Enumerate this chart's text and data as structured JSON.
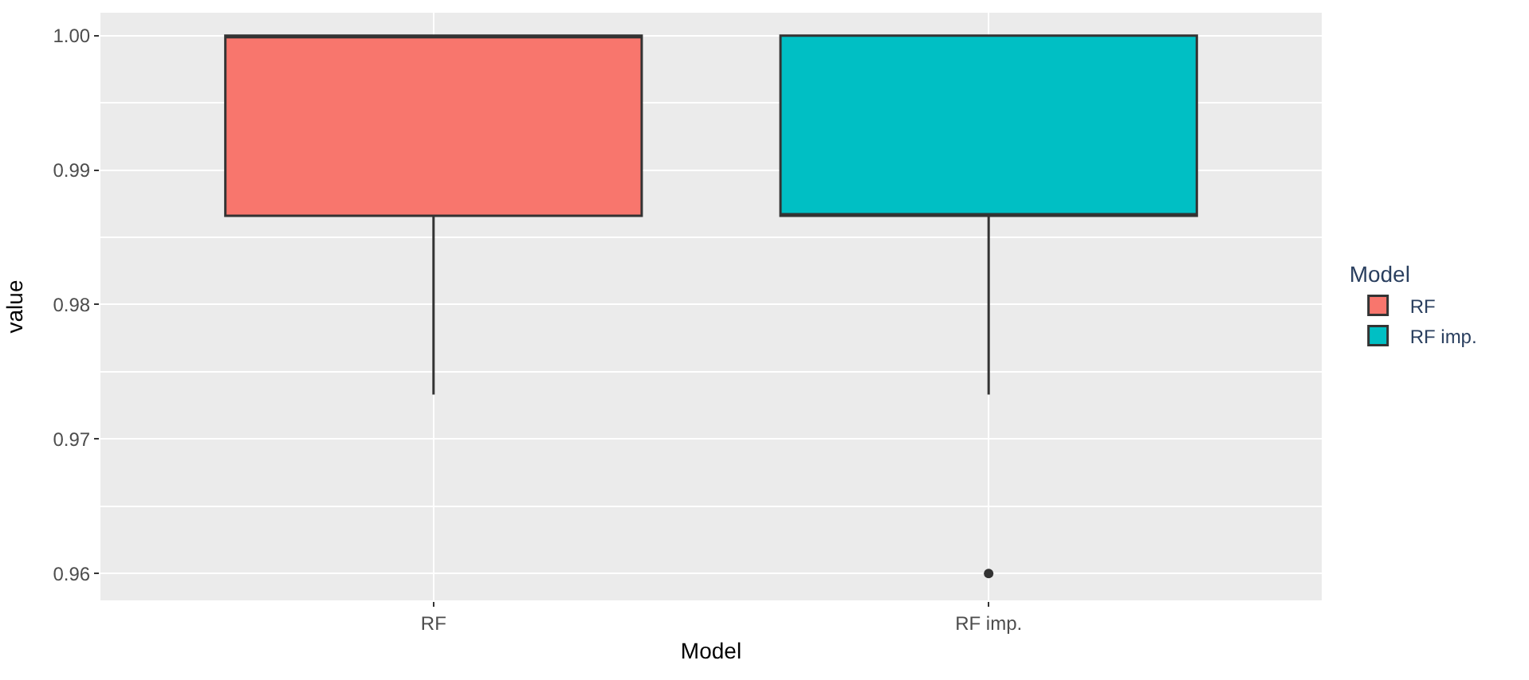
{
  "chart_data": {
    "type": "box",
    "xlabel": "Model",
    "ylabel": "value",
    "legend_title": "Model",
    "categories": [
      "RF",
      "RF imp."
    ],
    "series": [
      {
        "name": "RF",
        "color": "#f8766d",
        "boxes": [
          {
            "low": 0.9733,
            "q1": 0.9866,
            "median": 1.0,
            "q3": 1.0
          },
          null
        ]
      },
      {
        "name": "RF imp.",
        "color": "#00bfc4",
        "boxes": [
          null,
          {
            "low": 0.9733,
            "q1": 0.9866,
            "median": 0.9866,
            "q3": 1.0,
            "outliers": [
              0.96
            ]
          }
        ]
      }
    ],
    "ylim": [
      0.958,
      1.0017
    ],
    "yticks": [
      {
        "value": 0.96,
        "label": "0.96"
      },
      {
        "value": 0.97,
        "label": "0.97"
      },
      {
        "value": 0.98,
        "label": "0.98"
      },
      {
        "value": 0.99,
        "label": "0.99"
      },
      {
        "value": 1.0,
        "label": "1.00"
      }
    ],
    "grid": true,
    "legend": "right"
  }
}
